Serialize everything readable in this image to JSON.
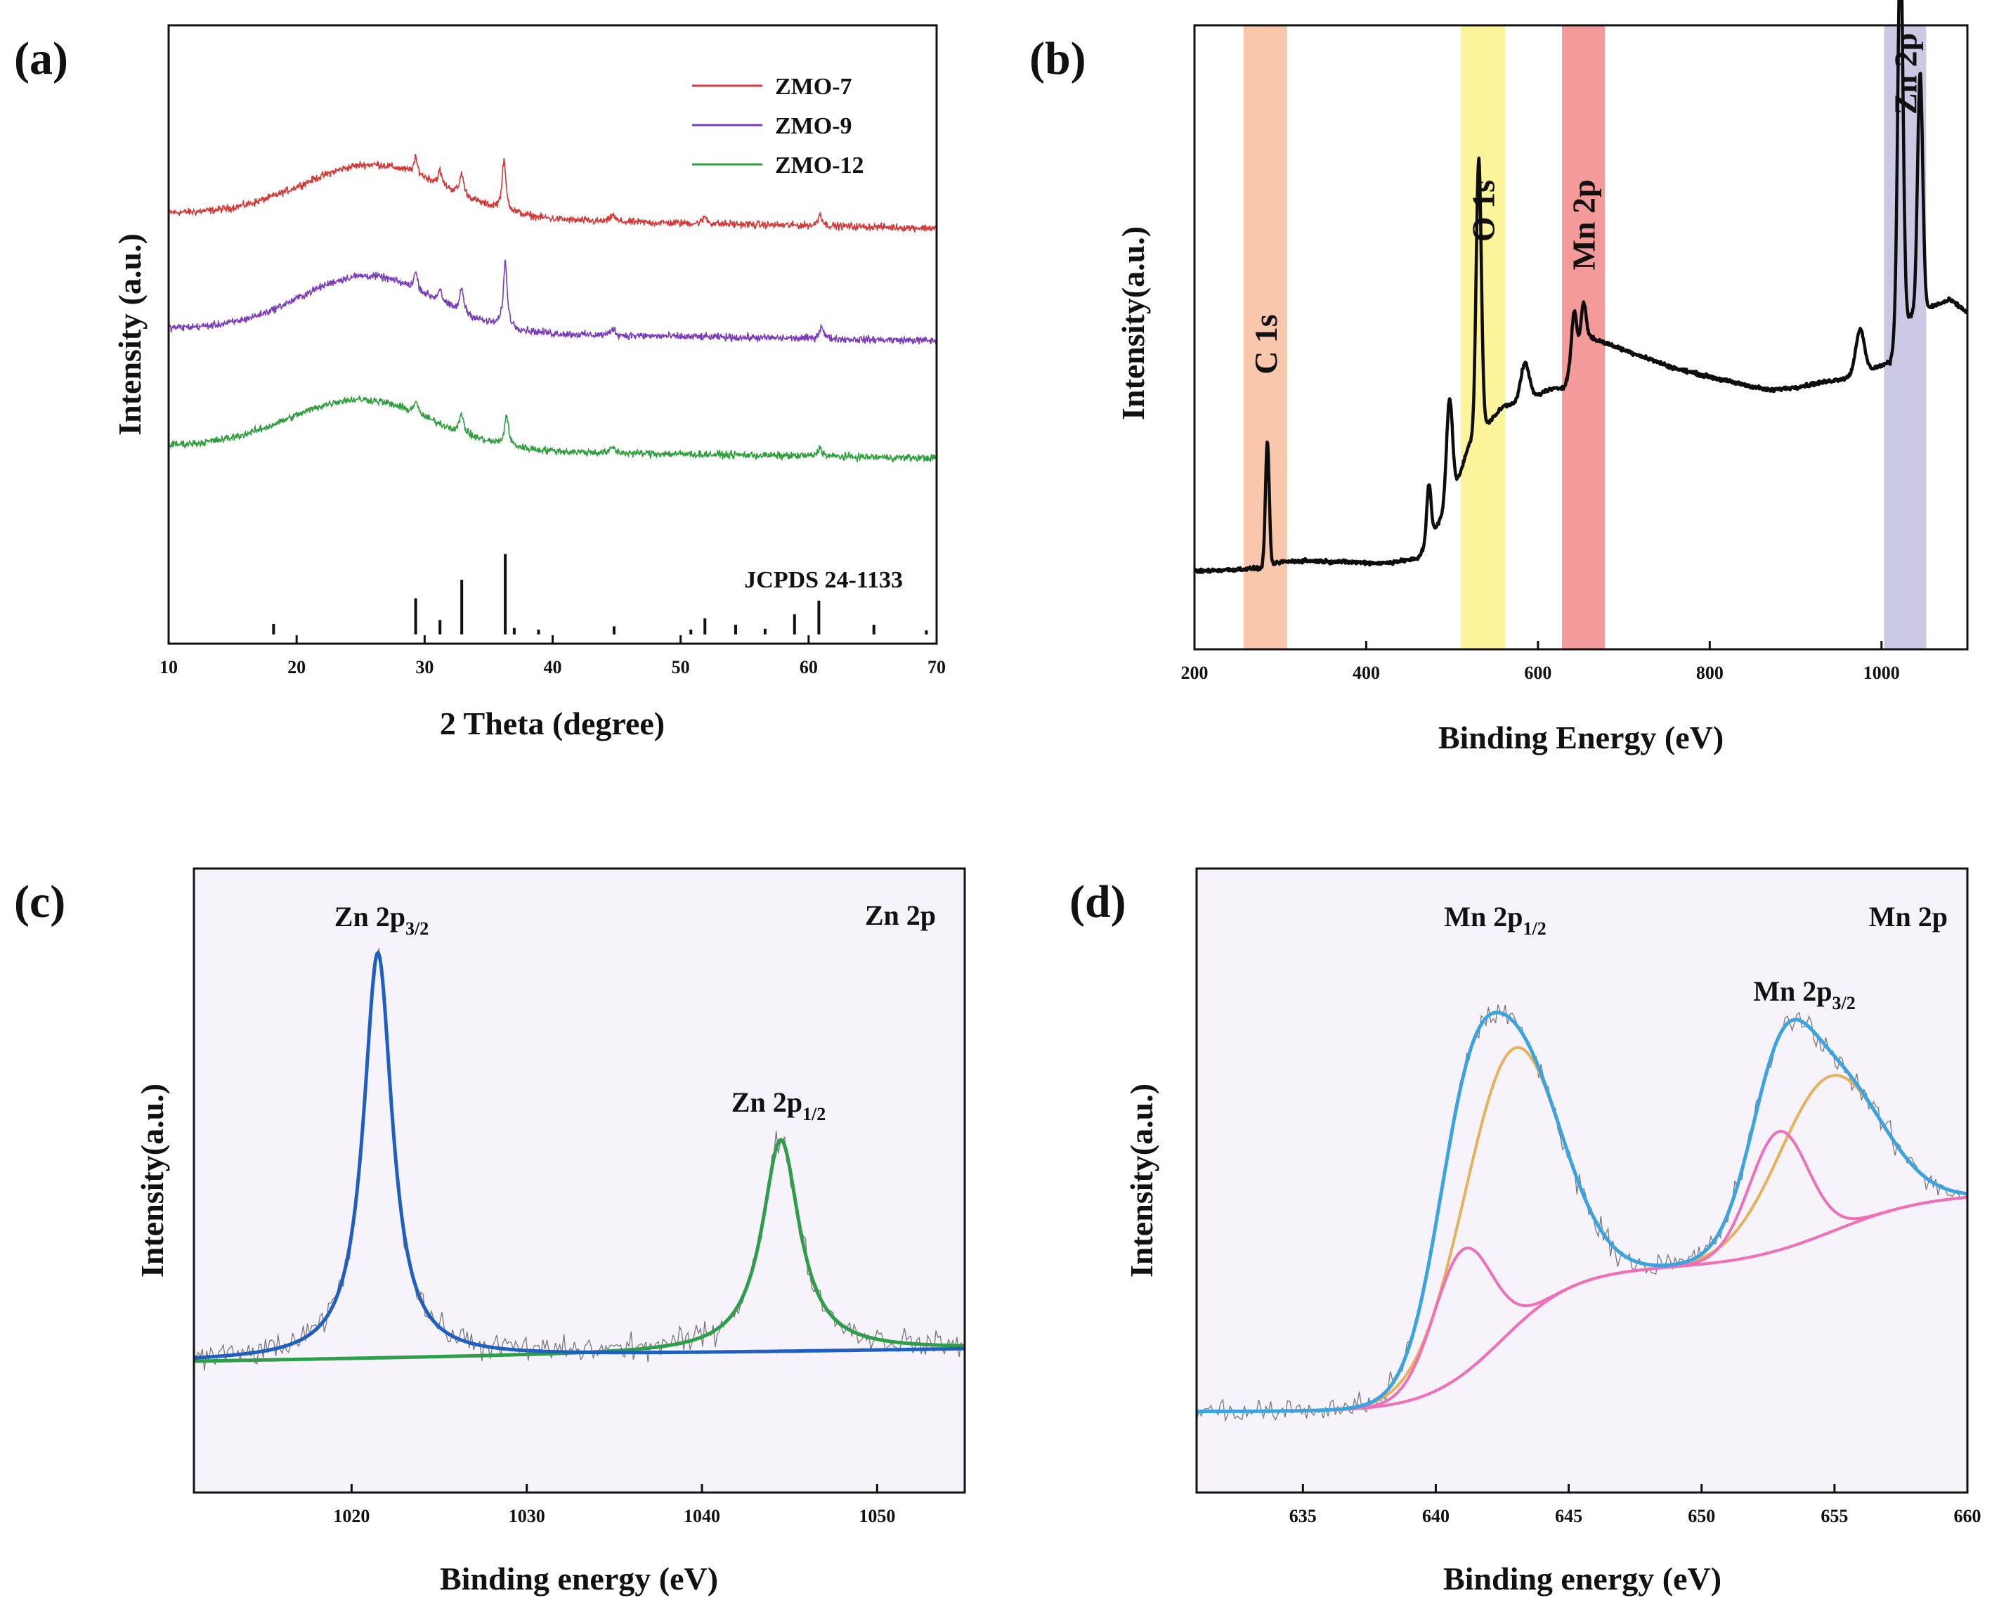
{
  "colors": {
    "zmo7": "#d23a3a",
    "zmo9": "#7a3cb8",
    "zmo12": "#2e9e3e",
    "jcpds": "#111111",
    "survey": "#0d0d0d",
    "band_c": "#f7b48f",
    "band_o": "#fbf07a",
    "band_mn": "#f17878",
    "band_zn": "#b9b6da",
    "raw": "#777777",
    "zn_fit": "#1f5fbf",
    "zn_fit2": "#2e9e4a",
    "mn_env": "#3aa3e0",
    "mn_comp_a": "#e6b15a",
    "mn_comp_b": "#ef6fb8",
    "plot_bg_cd": "#f7f3fb"
  },
  "chart_data": [
    {
      "id": "a",
      "type": "line",
      "panel_label": "(a)",
      "xlabel": "2 Theta (degree)",
      "ylabel": "Intensity (a.u.)",
      "xlim": [
        10,
        70
      ],
      "ylim": [
        0,
        10
      ],
      "xticks": [
        10,
        20,
        30,
        40,
        50,
        60,
        70
      ],
      "legend": [
        "ZMO-7",
        "ZMO-9",
        "ZMO-12"
      ],
      "legend_position": "top-right",
      "series": [
        {
          "name": "ZMO-7",
          "offset": 6.96,
          "hump_center": 26,
          "hump_height": 0.85,
          "hump_width": 5.5,
          "peaks": [
            [
              29.3,
              0.25
            ],
            [
              31.2,
              0.22
            ],
            [
              32.9,
              0.35
            ],
            [
              36.2,
              0.8
            ],
            [
              44.7,
              0.12
            ],
            [
              51.9,
              0.12
            ],
            [
              60.9,
              0.2
            ]
          ],
          "end_level": 6.72
        },
        {
          "name": "ZMO-9",
          "offset": 5.1,
          "hump_center": 25.5,
          "hump_height": 0.9,
          "hump_width": 5.2,
          "peaks": [
            [
              29.3,
              0.28
            ],
            [
              31.2,
              0.22
            ],
            [
              32.9,
              0.4
            ],
            [
              36.3,
              1.05
            ],
            [
              44.7,
              0.12
            ],
            [
              61.0,
              0.22
            ]
          ],
          "end_level": 4.9
        },
        {
          "name": "ZMO-12",
          "offset": 3.2,
          "hump_center": 25.0,
          "hump_height": 0.8,
          "hump_width": 5.5,
          "peaks": [
            [
              29.3,
              0.2
            ],
            [
              32.9,
              0.32
            ],
            [
              36.4,
              0.5
            ],
            [
              44.7,
              0.1
            ],
            [
              60.9,
              0.15
            ]
          ],
          "end_level": 3.0
        }
      ],
      "reference": {
        "name": "JCPDS 24-1133",
        "lines": [
          [
            18.2,
            0.13
          ],
          [
            29.3,
            0.45
          ],
          [
            31.2,
            0.18
          ],
          [
            32.9,
            0.68
          ],
          [
            36.3,
            1.0
          ],
          [
            37.0,
            0.08
          ],
          [
            38.9,
            0.06
          ],
          [
            44.8,
            0.1
          ],
          [
            50.8,
            0.06
          ],
          [
            51.9,
            0.2
          ],
          [
            54.3,
            0.12
          ],
          [
            56.6,
            0.07
          ],
          [
            58.9,
            0.25
          ],
          [
            60.8,
            0.42
          ],
          [
            65.1,
            0.12
          ],
          [
            69.2,
            0.05
          ]
        ]
      }
    },
    {
      "id": "b",
      "type": "line",
      "panel_label": "(b)",
      "xlabel": "Binding Energy (eV)",
      "ylabel": "Intensity(a.u.)",
      "xlim": [
        200,
        1100
      ],
      "ylim": [
        0,
        100
      ],
      "xticks": [
        200,
        400,
        600,
        800,
        1000
      ],
      "bands": [
        {
          "label": "C 1s",
          "from": 257,
          "to": 308,
          "color_key": "band_c"
        },
        {
          "label": "O 1s",
          "from": 510,
          "to": 562,
          "color_key": "band_o"
        },
        {
          "label": "Mn 2p",
          "from": 628,
          "to": 678,
          "color_key": "band_mn"
        },
        {
          "label": "Zn 2p",
          "from": 1003,
          "to": 1052,
          "color_key": "band_zn"
        }
      ],
      "baseline": [
        [
          200,
          12.5
        ],
        [
          280,
          13
        ],
        [
          300,
          14
        ],
        [
          330,
          14.2
        ],
        [
          420,
          13.8
        ],
        [
          460,
          14.5
        ],
        [
          500,
          24
        ],
        [
          520,
          33
        ],
        [
          540,
          36
        ],
        [
          560,
          39
        ],
        [
          590,
          40
        ],
        [
          610,
          41.5
        ],
        [
          630,
          42
        ],
        [
          645,
          47
        ],
        [
          660,
          50
        ],
        [
          700,
          48
        ],
        [
          760,
          45
        ],
        [
          820,
          43
        ],
        [
          870,
          41.5
        ],
        [
          900,
          42
        ],
        [
          960,
          43.5
        ],
        [
          990,
          45
        ],
        [
          1010,
          46
        ],
        [
          1020,
          52
        ],
        [
          1040,
          54
        ],
        [
          1060,
          55
        ],
        [
          1080,
          56
        ],
        [
          1100,
          54
        ]
      ],
      "peaks": [
        [
          284.8,
          20,
          2.2
        ],
        [
          473,
          9,
          2.5
        ],
        [
          497,
          17,
          3.5
        ],
        [
          531,
          44,
          3
        ],
        [
          585,
          6,
          5
        ],
        [
          642,
          8,
          3
        ],
        [
          653,
          7,
          3
        ],
        [
          975,
          7,
          5
        ],
        [
          1022,
          62,
          3
        ],
        [
          1045,
          38,
          3
        ]
      ]
    },
    {
      "id": "c",
      "type": "line",
      "panel_label": "(c)",
      "xlabel": "Binding energy (eV)",
      "ylabel": "Intensity(a.u.)",
      "xlim": [
        1011,
        1055
      ],
      "ylim": [
        0,
        100
      ],
      "xticks": [
        1020,
        1030,
        1040,
        1050
      ],
      "corner_label": "Zn 2p",
      "peak_labels": [
        {
          "text": "Zn 2p",
          "sub": "3/2",
          "x": 1021.5
        },
        {
          "text": "Zn 2p",
          "sub": "1/2",
          "x": 1044.5
        }
      ],
      "series": [
        {
          "name": "Zn 2p3/2 fit",
          "center": 1021.5,
          "height": 65,
          "width": 1.0,
          "color_key": "zn_fit"
        },
        {
          "name": "Zn 2p1/2 fit",
          "center": 1044.5,
          "height": 34,
          "width": 1.3,
          "color_key": "zn_fit2"
        }
      ],
      "background": [
        [
          1011,
          21
        ],
        [
          1055,
          23
        ]
      ]
    },
    {
      "id": "d",
      "type": "line",
      "panel_label": "(d)",
      "xlabel": "Binding energy (eV)",
      "ylabel": "Intensity(a.u.)",
      "xlim": [
        631,
        660
      ],
      "ylim": [
        0,
        100
      ],
      "xticks": [
        635,
        640,
        645,
        650,
        655,
        660
      ],
      "corner_label": "Mn 2p",
      "peak_labels": [
        {
          "text": "Mn 2p",
          "sub": "1/2",
          "x": 642.3
        },
        {
          "text": "Mn 2p",
          "sub": "3/2",
          "x": 654.0
        }
      ],
      "background_step": {
        "low": 13,
        "mid": 36,
        "high": 48,
        "step1": 642.5,
        "step2": 655.0
      },
      "components": [
        {
          "name": "Mn 2p1/2 main",
          "center": 642.8,
          "height": 45,
          "width": 1.8,
          "color_key": "mn_comp_a"
        },
        {
          "name": "Mn 2p1/2 satellite",
          "center": 641.0,
          "height": 20,
          "width": 1.1,
          "color_key": "mn_comp_b"
        },
        {
          "name": "Mn 2p3/2 main",
          "center": 654.8,
          "height": 25,
          "width": 1.9,
          "color_key": "mn_comp_a"
        },
        {
          "name": "Mn 2p3/2 satellite",
          "center": 652.9,
          "height": 19,
          "width": 1.1,
          "color_key": "mn_comp_b"
        }
      ]
    }
  ]
}
